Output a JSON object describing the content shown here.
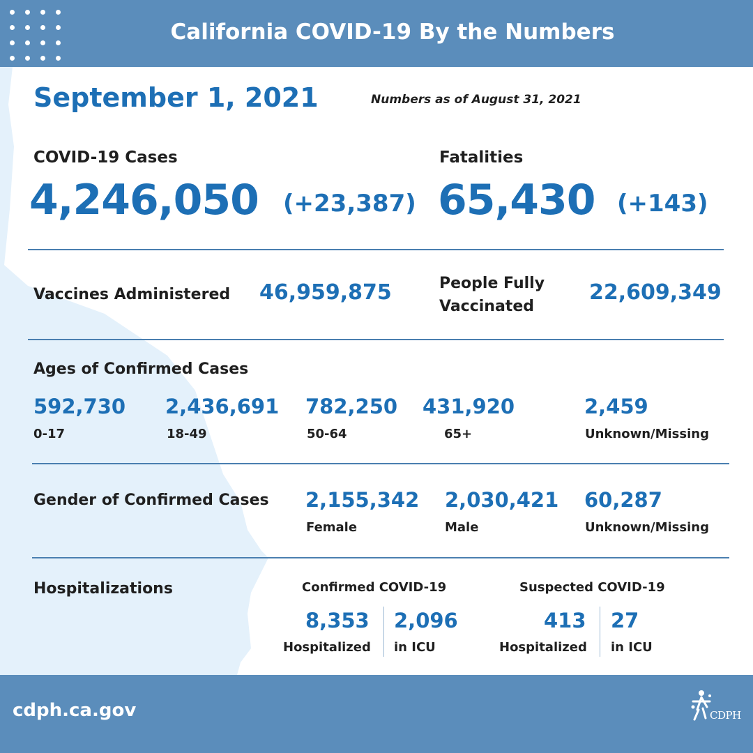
{
  "header": {
    "title": "California COVID-19 By the Numbers"
  },
  "date": "September 1, 2021",
  "as_of": "Numbers as of August 31, 2021",
  "cases": {
    "label": "COVID-19 Cases",
    "total": "4,246,050",
    "change": "(+23,387)"
  },
  "fatalities": {
    "label": "Fatalities",
    "total": "65,430",
    "change": "(+143)"
  },
  "vaccines": {
    "label": "Vaccines Administered",
    "value": "46,959,875"
  },
  "fully_vaccinated": {
    "label_line1": "People Fully",
    "label_line2": "Vaccinated",
    "value": "22,609,349"
  },
  "ages": {
    "label": "Ages of Confirmed Cases",
    "groups": [
      {
        "value": "592,730",
        "label": "0-17"
      },
      {
        "value": "2,436,691",
        "label": "18-49"
      },
      {
        "value": "782,250",
        "label": "50-64"
      },
      {
        "value": "431,920",
        "label": "65+"
      },
      {
        "value": "2,459",
        "label": "Unknown/Missing"
      }
    ]
  },
  "gender": {
    "label": "Gender of Confirmed Cases",
    "groups": [
      {
        "value": "2,155,342",
        "label": "Female"
      },
      {
        "value": "2,030,421",
        "label": "Male"
      },
      {
        "value": "60,287",
        "label": "Unknown/Missing"
      }
    ]
  },
  "hospitalizations": {
    "label": "Hospitalizations",
    "confirmed": {
      "heading": "Confirmed COVID-19",
      "hospitalized": "8,353",
      "hospitalized_label": "Hospitalized",
      "icu": "2,096",
      "icu_label": "in ICU"
    },
    "suspected": {
      "heading": "Suspected COVID-19",
      "hospitalized": "413",
      "hospitalized_label": "Hospitalized",
      "icu": "27",
      "icu_label": "in ICU"
    }
  },
  "footer": {
    "url": "cdph.ca.gov",
    "logo_text": "CDPH"
  },
  "colors": {
    "header_bg": "#5b8dbb",
    "accent_blue": "#1d6fb5",
    "map_fill": "#e4f1fb",
    "text": "#1f1f1f"
  },
  "icons": {
    "decoration": "dot-grid-icon",
    "logo": "cdph-logo-icon",
    "background": "california-map-silhouette"
  }
}
